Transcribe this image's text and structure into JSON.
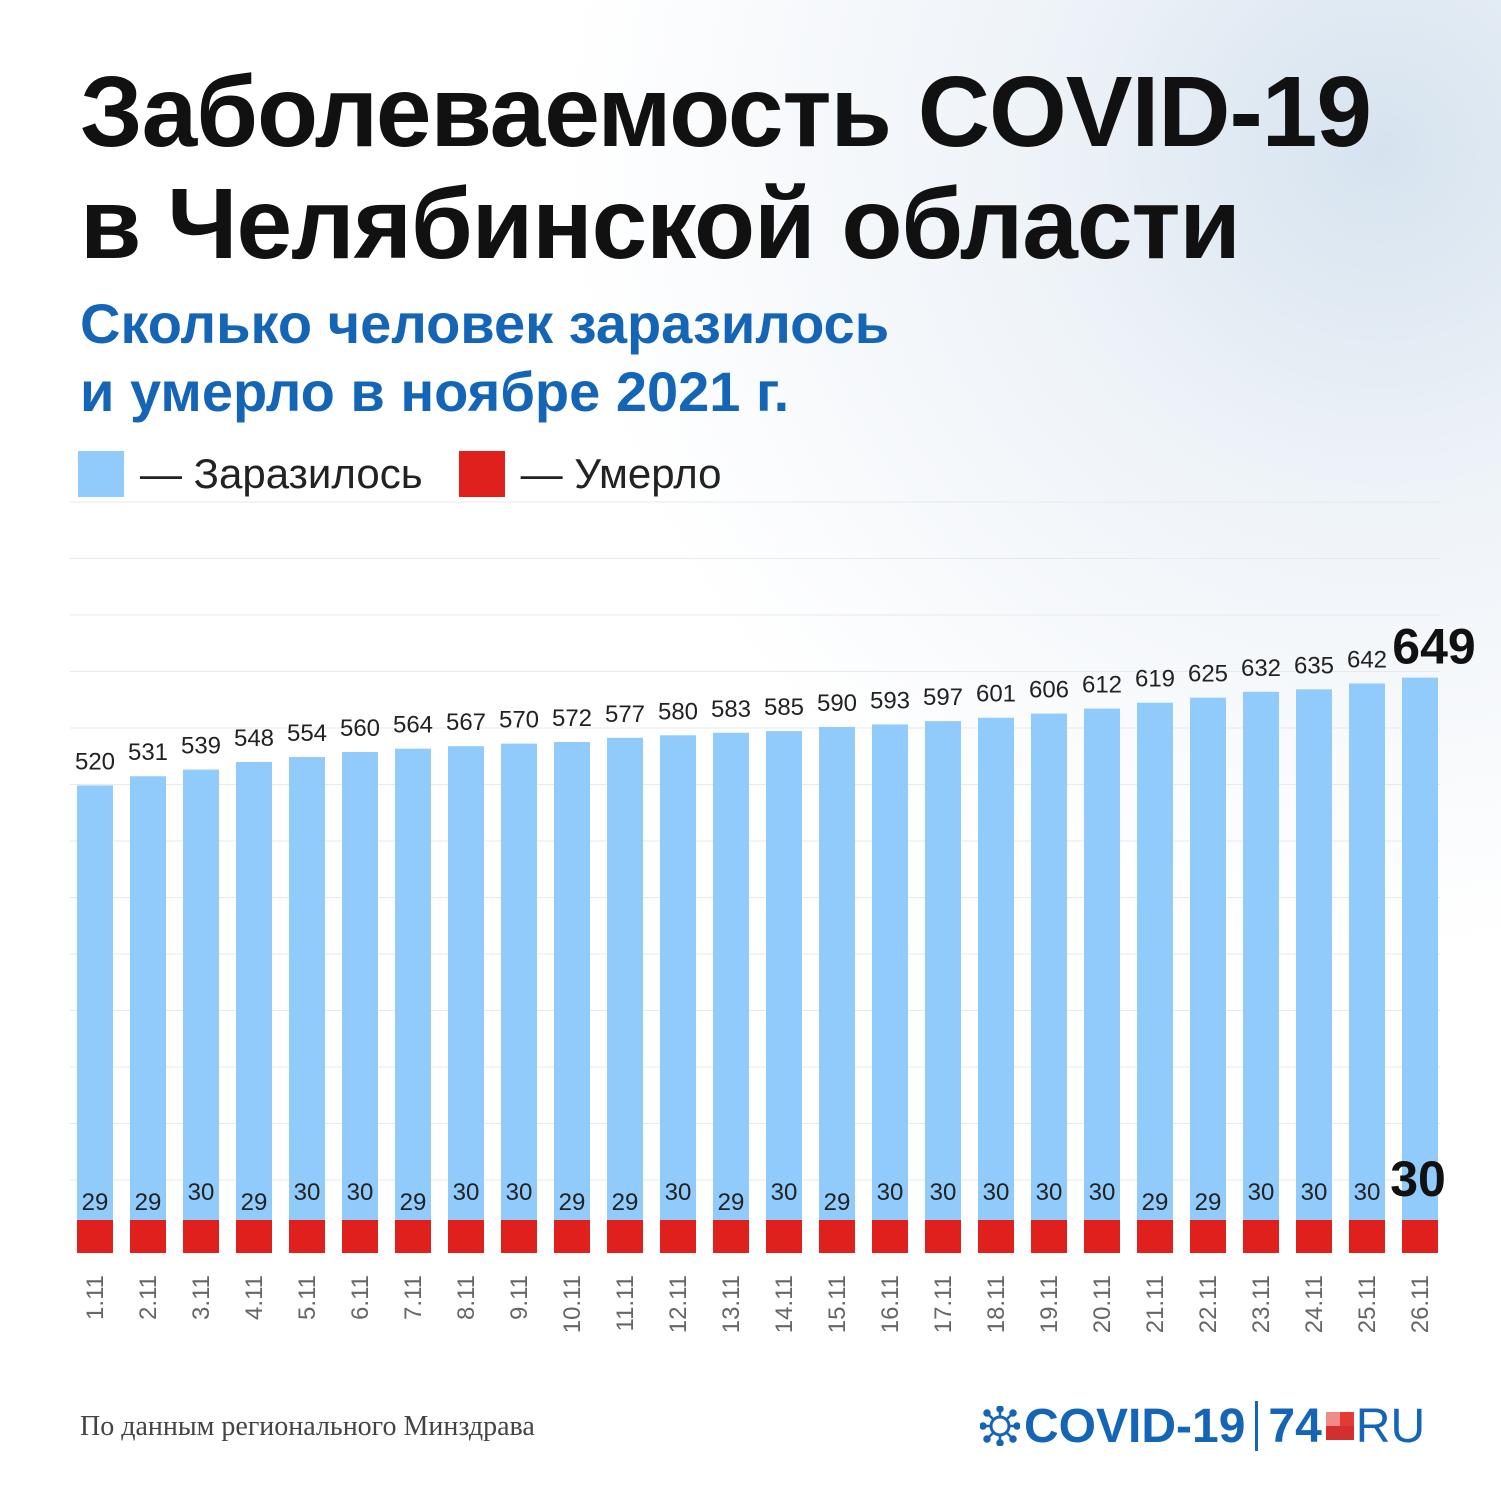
{
  "title_line1": "Заболеваемость COVID-19",
  "title_line2": "в Челябинской области",
  "subtitle_line1": "Сколько человек заразилось",
  "subtitle_line2": "и умерло в ноябре 2021 г.",
  "legend": [
    {
      "label": "— Заразилось",
      "color": "#90cbfb"
    },
    {
      "label": "— Умерло",
      "color": "#e0201c"
    }
  ],
  "source": "По данным регионального Минздрава",
  "logo": {
    "covid": "COVID-19",
    "num": "74",
    "ru": "RU",
    "icon": "virus-icon"
  },
  "chart_data": {
    "type": "bar",
    "categories": [
      "1.11",
      "2.11",
      "3.11",
      "4.11",
      "5.11",
      "6.11",
      "7.11",
      "8.11",
      "9.11",
      "10.11",
      "11.11",
      "12.11",
      "13.11",
      "14.11",
      "15.11",
      "16.11",
      "17.11",
      "18.11",
      "19.11",
      "20.11",
      "21.11",
      "22.11",
      "23.11",
      "24.11",
      "25.11",
      "26.11"
    ],
    "series": [
      {
        "name": "Заразилось",
        "color": "#90cbfb",
        "values": [
          520,
          531,
          539,
          548,
          554,
          560,
          564,
          567,
          570,
          572,
          577,
          580,
          583,
          585,
          590,
          593,
          597,
          601,
          606,
          612,
          619,
          625,
          632,
          635,
          642,
          649
        ]
      },
      {
        "name": "Умерло",
        "color": "#e0201c",
        "values": [
          29,
          29,
          30,
          29,
          30,
          30,
          29,
          30,
          30,
          29,
          29,
          30,
          29,
          30,
          29,
          30,
          30,
          30,
          30,
          30,
          29,
          29,
          30,
          30,
          30,
          30
        ]
      }
    ],
    "highlight_last": true,
    "grid": true
  }
}
